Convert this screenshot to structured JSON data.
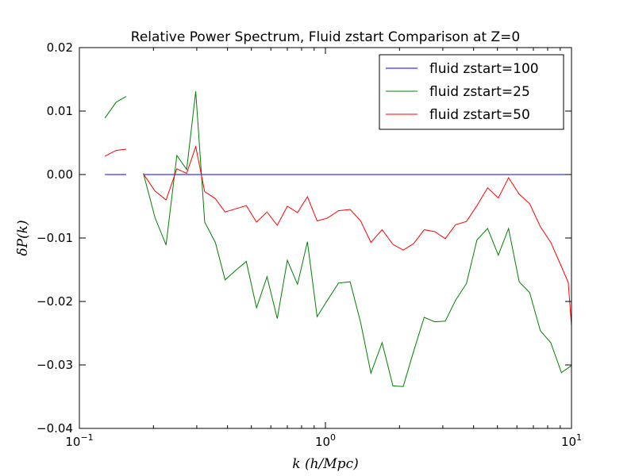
{
  "chart_data": {
    "type": "line",
    "title": "Relative Power Spectrum, Fluid zstart Comparison at Z=0",
    "xlabel": "k (h/Mpc)",
    "ylabel": "δP(k)",
    "xscale": "log",
    "xlim": [
      0.1,
      10
    ],
    "ylim": [
      -0.04,
      0.02
    ],
    "x_ticks": [
      {
        "value": 0.1,
        "base": "10",
        "exp": "−1"
      },
      {
        "value": 1,
        "base": "10",
        "exp": "0"
      },
      {
        "value": 10,
        "base": "10",
        "exp": "1"
      }
    ],
    "y_ticks": [
      {
        "value": 0.02,
        "label": "0.02"
      },
      {
        "value": 0.01,
        "label": "0.01"
      },
      {
        "value": 0.0,
        "label": "0.00"
      },
      {
        "value": -0.01,
        "label": "−0.01"
      },
      {
        "value": -0.02,
        "label": "−0.02"
      },
      {
        "value": -0.03,
        "label": "−0.03"
      },
      {
        "value": -0.04,
        "label": "−0.04"
      }
    ],
    "legend": "top-right",
    "series": [
      {
        "name": "fluid zstart=100",
        "color": "#0000ff",
        "segments": [
          [
            [
              0.127,
              0.0
            ],
            [
              0.155,
              0.0
            ]
          ],
          [
            [
              0.182,
              0.0
            ],
            [
              10.0,
              0.0
            ]
          ]
        ]
      },
      {
        "name": "fluid zstart=25",
        "color": "#008000",
        "segments": [
          [
            [
              0.127,
              0.0089
            ],
            [
              0.141,
              0.0114
            ],
            [
              0.155,
              0.0123
            ]
          ],
          [
            [
              0.182,
              0.0002
            ],
            [
              0.203,
              -0.0068
            ],
            [
              0.225,
              -0.0111
            ],
            [
              0.249,
              0.003
            ],
            [
              0.273,
              0.0008
            ],
            [
              0.297,
              0.0131
            ],
            [
              0.323,
              -0.0075
            ],
            [
              0.357,
              -0.0107
            ],
            [
              0.391,
              -0.0166
            ],
            [
              0.432,
              -0.0151
            ],
            [
              0.477,
              -0.0137
            ],
            [
              0.525,
              -0.021
            ],
            [
              0.579,
              -0.0161
            ],
            [
              0.637,
              -0.0227
            ],
            [
              0.7,
              -0.0135
            ],
            [
              0.77,
              -0.0173
            ],
            [
              0.845,
              -0.0106
            ],
            [
              0.925,
              -0.0224
            ],
            [
              1.015,
              -0.0199
            ],
            [
              1.13,
              -0.0171
            ],
            [
              1.26,
              -0.0169
            ],
            [
              1.39,
              -0.0233
            ],
            [
              1.53,
              -0.0313
            ],
            [
              1.7,
              -0.0265
            ],
            [
              1.88,
              -0.0333
            ],
            [
              2.07,
              -0.0334
            ],
            [
              2.28,
              -0.0279
            ],
            [
              2.52,
              -0.0225
            ],
            [
              2.78,
              -0.0232
            ],
            [
              3.07,
              -0.0231
            ],
            [
              3.38,
              -0.0198
            ],
            [
              3.74,
              -0.0172
            ],
            [
              4.13,
              -0.0103
            ],
            [
              4.56,
              -0.0085
            ],
            [
              5.04,
              -0.0127
            ],
            [
              5.55,
              -0.0085
            ],
            [
              6.13,
              -0.0169
            ],
            [
              6.76,
              -0.0186
            ],
            [
              7.47,
              -0.0246
            ],
            [
              8.24,
              -0.0265
            ],
            [
              9.1,
              -0.0312
            ],
            [
              10.0,
              -0.0301
            ]
          ],
          [
            [
              10.0,
              -0.0301
            ],
            [
              10.0,
              -0.0378
            ]
          ]
        ]
      },
      {
        "name": "fluid zstart=50",
        "color": "#ff0000",
        "segments": [
          [
            [
              0.127,
              0.0029
            ],
            [
              0.141,
              0.0038
            ],
            [
              0.155,
              0.004
            ]
          ],
          [
            [
              0.182,
              0.0001
            ],
            [
              0.203,
              -0.0026
            ],
            [
              0.225,
              -0.004
            ],
            [
              0.249,
              0.0009
            ],
            [
              0.273,
              0.0002
            ],
            [
              0.297,
              0.0044
            ],
            [
              0.323,
              -0.0027
            ],
            [
              0.357,
              -0.0038
            ],
            [
              0.391,
              -0.0059
            ],
            [
              0.432,
              -0.0054
            ],
            [
              0.477,
              -0.0049
            ],
            [
              0.525,
              -0.0075
            ],
            [
              0.579,
              -0.0059
            ],
            [
              0.637,
              -0.008
            ],
            [
              0.7,
              -0.005
            ],
            [
              0.77,
              -0.006
            ],
            [
              0.845,
              -0.0035
            ],
            [
              0.925,
              -0.0073
            ],
            [
              1.015,
              -0.0069
            ],
            [
              1.13,
              -0.0057
            ],
            [
              1.26,
              -0.0055
            ],
            [
              1.39,
              -0.0073
            ],
            [
              1.53,
              -0.0107
            ],
            [
              1.7,
              -0.0087
            ],
            [
              1.88,
              -0.011
            ],
            [
              2.07,
              -0.0119
            ],
            [
              2.28,
              -0.0109
            ],
            [
              2.52,
              -0.0087
            ],
            [
              2.78,
              -0.009
            ],
            [
              3.07,
              -0.0101
            ],
            [
              3.38,
              -0.0079
            ],
            [
              3.74,
              -0.0074
            ],
            [
              4.13,
              -0.0049
            ],
            [
              4.56,
              -0.0021
            ],
            [
              5.04,
              -0.0037
            ],
            [
              5.55,
              -0.0005
            ],
            [
              6.13,
              -0.0031
            ],
            [
              6.76,
              -0.0046
            ],
            [
              7.47,
              -0.0082
            ],
            [
              8.24,
              -0.0107
            ],
            [
              9.1,
              -0.0145
            ],
            [
              9.7,
              -0.017
            ],
            [
              10.0,
              -0.0238
            ]
          ]
        ]
      }
    ]
  }
}
